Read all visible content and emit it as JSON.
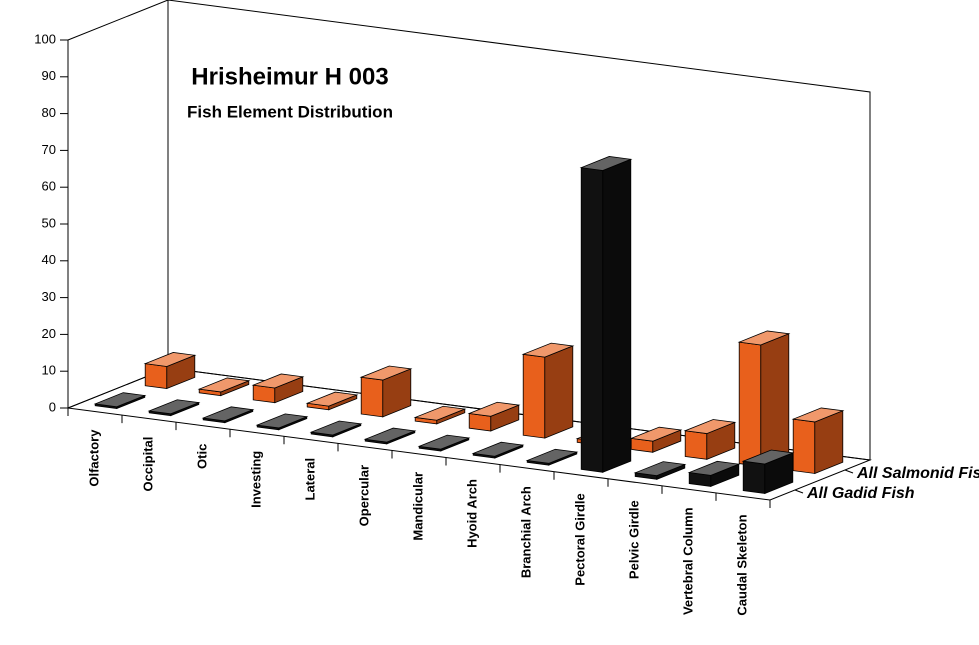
{
  "chart_data": {
    "type": "bar3d",
    "title": "Hrisheimur H 003",
    "subtitle": "Fish Element Distribution",
    "categories": [
      "Olfactory",
      "Occipital",
      "Otic",
      "Investing",
      "Lateral",
      "Opercular",
      "Mandicular",
      "Hyoid Arch",
      "Branchial Arch",
      "Pectoral Girdle",
      "Pelvic Girdle",
      "Vertebral Column",
      "Caudal Skeleton"
    ],
    "series": [
      {
        "name": "All Gadid Fish",
        "color": "#111111",
        "values": [
          0.5,
          0.5,
          0.5,
          0.5,
          0.5,
          0.5,
          0.5,
          0.5,
          0.5,
          82,
          1,
          3,
          8
        ]
      },
      {
        "name": "All Salmonid Fish",
        "color": "#e8601c",
        "values": [
          6,
          1,
          4,
          1,
          10,
          1,
          4,
          22,
          1,
          3,
          7,
          33,
          14
        ]
      }
    ],
    "ylim": [
      0,
      100
    ],
    "yticks": [
      0,
      10,
      20,
      30,
      40,
      50,
      60,
      70,
      80,
      90,
      100
    ]
  }
}
